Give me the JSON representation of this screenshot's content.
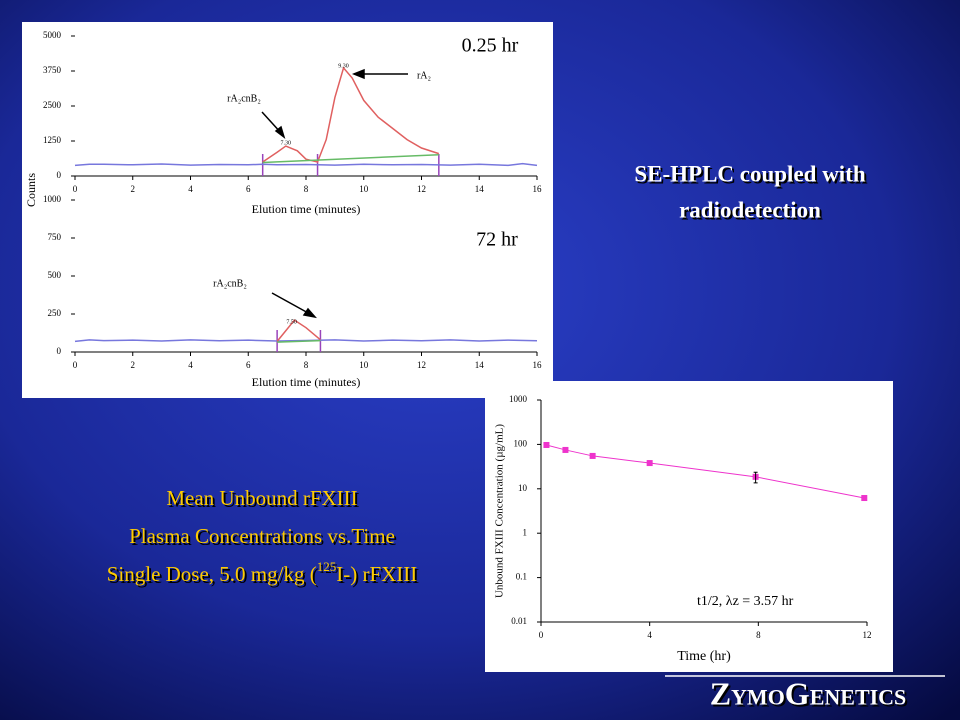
{
  "slide": {
    "heading": [
      "SE-HPLC coupled with",
      "radiodetection"
    ],
    "caption": [
      "Mean Unbound rFXIII",
      "Plasma Concentrations vs.Time"
    ],
    "caption_last": {
      "before": "Single Dose, 5.0 mg/kg (",
      "sup": "125",
      "after": "I-) rFXIII"
    },
    "logo": "ZymoGenetics"
  },
  "chart_data": [
    {
      "type": "line",
      "title": "0.25 hr",
      "x_label": "Elution time (minutes)",
      "y_label": "Counts",
      "xlim": [
        0,
        16
      ],
      "ylim": [
        0,
        5000
      ],
      "xticks": [
        0,
        2,
        4,
        6,
        8,
        10,
        12,
        14,
        16
      ],
      "yticks": [
        0,
        1250,
        2500,
        3750,
        5000
      ],
      "annotations": [
        "rA₂cnB₂",
        "rA₂"
      ],
      "series": [
        {
          "color": "#7777dd",
          "x": [
            0,
            0.5,
            1,
            2,
            3,
            4,
            5,
            6,
            6.5,
            7,
            8,
            9,
            10,
            11,
            12,
            13,
            14,
            15,
            15.5,
            16
          ],
          "values": [
            380,
            420,
            420,
            400,
            430,
            390,
            410,
            400,
            420,
            400,
            410,
            390,
            420,
            400,
            410,
            390,
            420,
            380,
            440,
            380
          ]
        },
        {
          "color": "#e06060",
          "x": [
            6.5,
            7,
            7.3,
            7.7,
            8,
            8.4,
            8.7,
            9,
            9.3,
            9.6,
            10,
            10.5,
            11,
            11.5,
            12,
            12.6
          ],
          "values": [
            500,
            850,
            1070,
            900,
            600,
            500,
            1300,
            2800,
            3860,
            3500,
            2700,
            2100,
            1700,
            1300,
            1000,
            800
          ]
        },
        {
          "color": "#66bb66",
          "x": [
            6.5,
            12.6
          ],
          "values": [
            480,
            760
          ]
        }
      ],
      "integration_marks": {
        "color": "#9944bb",
        "x": [
          6.5,
          8.4,
          12.6
        ]
      },
      "peaks": [
        {
          "value": 7.3,
          "label": "7.30"
        },
        {
          "value": 9.3,
          "label": "9.30"
        }
      ]
    },
    {
      "type": "line",
      "title": "72 hr",
      "x_label": "Elution time (minutes)",
      "xlim": [
        0,
        16
      ],
      "ylim": [
        0,
        1000
      ],
      "xticks": [
        0,
        2,
        4,
        6,
        8,
        10,
        12,
        14,
        16
      ],
      "yticks": [
        0,
        250,
        500,
        750,
        1000
      ],
      "annotations": [
        "rA₂cnB₂"
      ],
      "series": [
        {
          "color": "#7777dd",
          "x": [
            0,
            0.5,
            1,
            2,
            3,
            4,
            5,
            6,
            7,
            8,
            9,
            10,
            11,
            12,
            13,
            14,
            15,
            16
          ],
          "values": [
            70,
            80,
            75,
            78,
            72,
            80,
            74,
            78,
            72,
            76,
            80,
            72,
            78,
            74,
            80,
            72,
            78,
            74
          ]
        },
        {
          "color": "#e06060",
          "x": [
            7,
            7.3,
            7.6,
            8,
            8.5
          ],
          "values": [
            70,
            140,
            210,
            160,
            80
          ]
        },
        {
          "color": "#66bb66",
          "x": [
            7,
            8.5
          ],
          "values": [
            65,
            75
          ]
        }
      ],
      "integration_marks": {
        "color": "#9944bb",
        "x": [
          7,
          8.5
        ]
      },
      "peaks": [
        {
          "value": 7.5,
          "label": "7.50"
        }
      ]
    },
    {
      "type": "line",
      "x_label": "Time (hr)",
      "y_label": "Unbound FXIII Concentration (µg/mL)",
      "y_scale": "log",
      "xlim": [
        0,
        12
      ],
      "ylim": [
        0.01,
        1000
      ],
      "xticks": [
        0,
        4,
        8,
        12
      ],
      "yticks": [
        0.01,
        0.1,
        1,
        10,
        100,
        1000
      ],
      "annotation": "t1/2, λz = 3.57 hr",
      "series": [
        {
          "color": "#ee33cc",
          "marker": "square",
          "x": [
            0.2,
            0.9,
            1.9,
            4,
            7.9,
            11.9
          ],
          "values": [
            97,
            75,
            55,
            38,
            18.6,
            6.2
          ],
          "errors": [
            null,
            null,
            null,
            null,
            5,
            null
          ]
        }
      ]
    }
  ]
}
